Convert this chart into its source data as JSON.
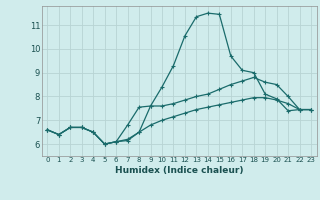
{
  "xlabel": "Humidex (Indice chaleur)",
  "bg_color": "#d0ecec",
  "grid_color": "#b8d4d4",
  "line_color": "#1a6b6b",
  "xlim": [
    -0.5,
    23.5
  ],
  "ylim": [
    5.5,
    11.8
  ],
  "yticks": [
    6,
    7,
    8,
    9,
    10,
    11
  ],
  "xticks": [
    0,
    1,
    2,
    3,
    4,
    5,
    6,
    7,
    8,
    9,
    10,
    11,
    12,
    13,
    14,
    15,
    16,
    17,
    18,
    19,
    20,
    21,
    22,
    23
  ],
  "line1_x": [
    0,
    1,
    2,
    3,
    4,
    5,
    6,
    7,
    8,
    9,
    10,
    11,
    12,
    13,
    14,
    15,
    16,
    17,
    18,
    19,
    20,
    21,
    22,
    23
  ],
  "line1_y": [
    6.6,
    6.4,
    6.7,
    6.7,
    6.5,
    6.0,
    6.1,
    6.15,
    6.5,
    7.6,
    8.4,
    9.3,
    10.55,
    11.35,
    11.5,
    11.45,
    9.7,
    9.1,
    9.0,
    8.1,
    7.9,
    7.4,
    7.45,
    7.45
  ],
  "line2_x": [
    0,
    1,
    2,
    3,
    4,
    5,
    6,
    7,
    8,
    9,
    10,
    11,
    12,
    13,
    14,
    15,
    16,
    17,
    18,
    19,
    20,
    21,
    22,
    23
  ],
  "line2_y": [
    6.6,
    6.4,
    6.7,
    6.7,
    6.5,
    6.0,
    6.1,
    6.8,
    7.55,
    7.6,
    7.6,
    7.7,
    7.85,
    8.0,
    8.1,
    8.3,
    8.5,
    8.65,
    8.8,
    8.6,
    8.5,
    8.0,
    7.45,
    7.45
  ],
  "line3_x": [
    0,
    1,
    2,
    3,
    4,
    5,
    6,
    7,
    8,
    9,
    10,
    11,
    12,
    13,
    14,
    15,
    16,
    17,
    18,
    19,
    20,
    21,
    22,
    23
  ],
  "line3_y": [
    6.6,
    6.4,
    6.7,
    6.7,
    6.5,
    6.0,
    6.1,
    6.2,
    6.5,
    6.8,
    7.0,
    7.15,
    7.3,
    7.45,
    7.55,
    7.65,
    7.75,
    7.85,
    7.95,
    7.95,
    7.85,
    7.7,
    7.45,
    7.45
  ]
}
